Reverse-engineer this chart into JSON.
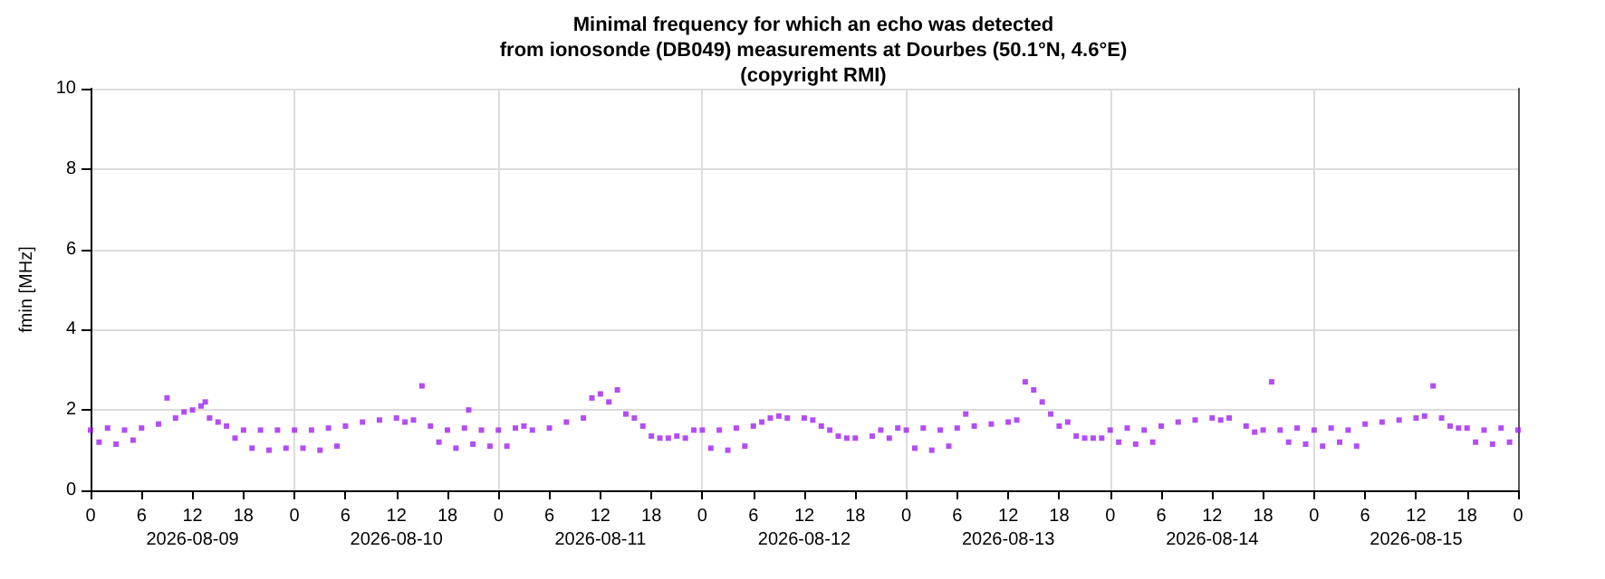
{
  "chart_data": {
    "type": "scatter",
    "title": "Minimal frequency for which an echo was detected\nfrom ionosonde (DB049) measurements at Dourbes (50.1°N, 4.6°E)\n(copyright RMI)",
    "ylabel": "fmin [MHz]",
    "x": [
      "2026-08-09T00:00",
      "2026-08-09T01:00",
      "2026-08-09T02:00",
      "2026-08-09T03:00",
      "2026-08-09T04:00",
      "2026-08-09T05:00",
      "2026-08-09T06:00",
      "2026-08-09T08:00",
      "2026-08-09T09:00",
      "2026-08-09T10:00",
      "2026-08-09T11:00",
      "2026-08-09T12:00",
      "2026-08-09T13:00",
      "2026-08-09T13:30",
      "2026-08-09T14:00",
      "2026-08-09T15:00",
      "2026-08-09T16:00",
      "2026-08-09T17:00",
      "2026-08-09T18:00",
      "2026-08-09T19:00",
      "2026-08-09T20:00",
      "2026-08-09T21:00",
      "2026-08-09T22:00",
      "2026-08-09T23:00",
      "2026-08-10T00:00",
      "2026-08-10T01:00",
      "2026-08-10T02:00",
      "2026-08-10T03:00",
      "2026-08-10T04:00",
      "2026-08-10T05:00",
      "2026-08-10T06:00",
      "2026-08-10T08:00",
      "2026-08-10T10:00",
      "2026-08-10T12:00",
      "2026-08-10T13:00",
      "2026-08-10T14:00",
      "2026-08-10T15:00",
      "2026-08-10T16:00",
      "2026-08-10T17:00",
      "2026-08-10T18:00",
      "2026-08-10T19:00",
      "2026-08-10T20:00",
      "2026-08-10T20:30",
      "2026-08-10T21:00",
      "2026-08-10T22:00",
      "2026-08-10T23:00",
      "2026-08-11T00:00",
      "2026-08-11T01:00",
      "2026-08-11T02:00",
      "2026-08-11T03:00",
      "2026-08-11T04:00",
      "2026-08-11T06:00",
      "2026-08-11T08:00",
      "2026-08-11T10:00",
      "2026-08-11T11:00",
      "2026-08-11T12:00",
      "2026-08-11T13:00",
      "2026-08-11T14:00",
      "2026-08-11T15:00",
      "2026-08-11T16:00",
      "2026-08-11T17:00",
      "2026-08-11T18:00",
      "2026-08-11T19:00",
      "2026-08-11T20:00",
      "2026-08-11T21:00",
      "2026-08-11T22:00",
      "2026-08-11T23:00",
      "2026-08-12T00:00",
      "2026-08-12T01:00",
      "2026-08-12T02:00",
      "2026-08-12T03:00",
      "2026-08-12T04:00",
      "2026-08-12T05:00",
      "2026-08-12T06:00",
      "2026-08-12T07:00",
      "2026-08-12T08:00",
      "2026-08-12T09:00",
      "2026-08-12T10:00",
      "2026-08-12T12:00",
      "2026-08-12T13:00",
      "2026-08-12T14:00",
      "2026-08-12T15:00",
      "2026-08-12T16:00",
      "2026-08-12T17:00",
      "2026-08-12T18:00",
      "2026-08-12T20:00",
      "2026-08-12T21:00",
      "2026-08-12T22:00",
      "2026-08-12T23:00",
      "2026-08-13T00:00",
      "2026-08-13T01:00",
      "2026-08-13T02:00",
      "2026-08-13T03:00",
      "2026-08-13T04:00",
      "2026-08-13T05:00",
      "2026-08-13T06:00",
      "2026-08-13T07:00",
      "2026-08-13T08:00",
      "2026-08-13T10:00",
      "2026-08-13T12:00",
      "2026-08-13T13:00",
      "2026-08-13T14:00",
      "2026-08-13T15:00",
      "2026-08-13T16:00",
      "2026-08-13T17:00",
      "2026-08-13T18:00",
      "2026-08-13T19:00",
      "2026-08-13T20:00",
      "2026-08-13T21:00",
      "2026-08-13T22:00",
      "2026-08-13T23:00",
      "2026-08-14T00:00",
      "2026-08-14T01:00",
      "2026-08-14T02:00",
      "2026-08-14T03:00",
      "2026-08-14T04:00",
      "2026-08-14T05:00",
      "2026-08-14T06:00",
      "2026-08-14T08:00",
      "2026-08-14T10:00",
      "2026-08-14T12:00",
      "2026-08-14T13:00",
      "2026-08-14T14:00",
      "2026-08-14T16:00",
      "2026-08-14T17:00",
      "2026-08-14T18:00",
      "2026-08-14T19:00",
      "2026-08-14T20:00",
      "2026-08-14T21:00",
      "2026-08-14T22:00",
      "2026-08-14T23:00",
      "2026-08-15T00:00",
      "2026-08-15T01:00",
      "2026-08-15T02:00",
      "2026-08-15T03:00",
      "2026-08-15T04:00",
      "2026-08-15T05:00",
      "2026-08-15T06:00",
      "2026-08-15T08:00",
      "2026-08-15T10:00",
      "2026-08-15T12:00",
      "2026-08-15T13:00",
      "2026-08-15T14:00",
      "2026-08-15T15:00",
      "2026-08-15T16:00",
      "2026-08-15T17:00",
      "2026-08-15T18:00",
      "2026-08-15T19:00",
      "2026-08-15T20:00",
      "2026-08-15T21:00",
      "2026-08-15T22:00",
      "2026-08-15T23:00",
      "2026-08-16T00:00"
    ],
    "series": [
      {
        "color": "#a020f0",
        "values": [
          1.5,
          1.2,
          1.55,
          1.15,
          1.5,
          1.25,
          1.55,
          1.65,
          2.3,
          1.8,
          1.95,
          2.0,
          2.1,
          2.2,
          1.8,
          1.7,
          1.6,
          1.3,
          1.5,
          1.05,
          1.5,
          1.0,
          1.5,
          1.05,
          1.5,
          1.05,
          1.5,
          1.0,
          1.55,
          1.1,
          1.6,
          1.7,
          1.75,
          1.8,
          1.7,
          1.75,
          2.6,
          1.6,
          1.2,
          1.5,
          1.05,
          1.55,
          2.0,
          1.15,
          1.5,
          1.1,
          1.5,
          1.1,
          1.55,
          1.6,
          1.5,
          1.55,
          1.7,
          1.8,
          2.3,
          2.4,
          2.2,
          2.5,
          1.9,
          1.8,
          1.6,
          1.35,
          1.3,
          1.3,
          1.35,
          1.3,
          1.5,
          1.5,
          1.05,
          1.5,
          1.0,
          1.55,
          1.1,
          1.6,
          1.7,
          1.8,
          1.85,
          1.8,
          1.8,
          1.75,
          1.6,
          1.5,
          1.35,
          1.3,
          1.3,
          1.35,
          1.5,
          1.3,
          1.55,
          1.5,
          1.05,
          1.55,
          1.0,
          1.5,
          1.1,
          1.55,
          1.9,
          1.6,
          1.65,
          1.7,
          1.75,
          2.7,
          2.5,
          2.2,
          1.9,
          1.6,
          1.7,
          1.35,
          1.3,
          1.3,
          1.3,
          1.5,
          1.2,
          1.55,
          1.15,
          1.5,
          1.2,
          1.6,
          1.7,
          1.75,
          1.8,
          1.75,
          1.8,
          1.6,
          1.45,
          1.5,
          2.7,
          1.5,
          1.2,
          1.55,
          1.15,
          1.5,
          1.1,
          1.55,
          1.2,
          1.5,
          1.1,
          1.65,
          1.7,
          1.75,
          1.8,
          1.85,
          2.6,
          1.8,
          1.6,
          1.55,
          1.55,
          1.2,
          1.5,
          1.15,
          1.55,
          1.2,
          1.5
        ]
      }
    ],
    "xlim": [
      "2026-08-09T00:00",
      "2026-08-16T00:00"
    ],
    "xticks": [
      {
        "value": "2026-08-09T00:00",
        "label": "0"
      },
      {
        "value": "2026-08-09T06:00",
        "label": "6"
      },
      {
        "value": "2026-08-09T12:00",
        "label": "12\n2026-08-09"
      },
      {
        "value": "2026-08-09T18:00",
        "label": "18"
      },
      {
        "value": "2026-08-10T00:00",
        "label": "0"
      },
      {
        "value": "2026-08-10T06:00",
        "label": "6"
      },
      {
        "value": "2026-08-10T12:00",
        "label": "12\n2026-08-10"
      },
      {
        "value": "2026-08-10T18:00",
        "label": "18"
      },
      {
        "value": "2026-08-11T00:00",
        "label": "0"
      },
      {
        "value": "2026-08-11T06:00",
        "label": "6"
      },
      {
        "value": "2026-08-11T12:00",
        "label": "12\n2026-08-11"
      },
      {
        "value": "2026-08-11T18:00",
        "label": "18"
      },
      {
        "value": "2026-08-12T00:00",
        "label": "0"
      },
      {
        "value": "2026-08-12T06:00",
        "label": "6"
      },
      {
        "value": "2026-08-12T12:00",
        "label": "12\n2026-08-12"
      },
      {
        "value": "2026-08-12T18:00",
        "label": "18"
      },
      {
        "value": "2026-08-13T00:00",
        "label": "0"
      },
      {
        "value": "2026-08-13T06:00",
        "label": "6"
      },
      {
        "value": "2026-08-13T12:00",
        "label": "12\n2026-08-13"
      },
      {
        "value": "2026-08-13T18:00",
        "label": "18"
      },
      {
        "value": "2026-08-14T00:00",
        "label": "0"
      },
      {
        "value": "2026-08-14T06:00",
        "label": "6"
      },
      {
        "value": "2026-08-14T12:00",
        "label": "12\n2026-08-14"
      },
      {
        "value": "2026-08-14T18:00",
        "label": "18"
      },
      {
        "value": "2026-08-15T00:00",
        "label": "0"
      },
      {
        "value": "2026-08-15T06:00",
        "label": "6"
      },
      {
        "value": "2026-08-15T12:00",
        "label": "12\n2026-08-15"
      },
      {
        "value": "2026-08-15T18:00",
        "label": "18"
      },
      {
        "value": "2026-08-16T00:00",
        "label": "0"
      }
    ],
    "ylim": [
      0,
      10
    ],
    "yticks": [
      0,
      2,
      4,
      6,
      8,
      10
    ],
    "grid": true,
    "marker": "square"
  }
}
